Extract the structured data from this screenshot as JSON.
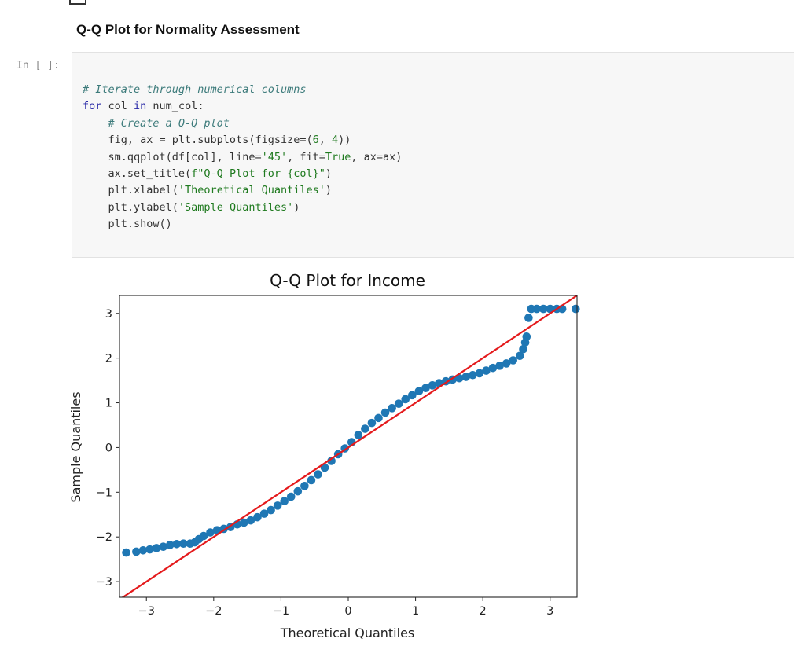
{
  "markdown": {
    "heading": "Q-Q Plot for Normality Assessment"
  },
  "cell": {
    "prompt": "In [ ]:",
    "code": {
      "line1": "# Iterate through numerical columns",
      "line2_kw": "for",
      "line2_a": " col ",
      "line2_in": "in",
      "line2_b": " num_col:",
      "line3": "    # Create a Q-Q plot",
      "line4_a": "    fig, ax = plt.subplots(figsize=(",
      "line4_n1": "6",
      "line4_b": ", ",
      "line4_n2": "4",
      "line4_c": "))",
      "line5_a": "    sm.qqplot(df[col], line=",
      "line5_s": "'45'",
      "line5_b": ", fit=",
      "line5_t": "True",
      "line5_c": ", ax=ax)",
      "line6_a": "    ax.set_title(",
      "line6_s": "f\"Q-Q Plot for {col}\"",
      "line6_b": ")",
      "line7_a": "    plt.xlabel(",
      "line7_s": "'Theoretical Quantiles'",
      "line7_b": ")",
      "line8_a": "    plt.ylabel(",
      "line8_s": "'Sample Quantiles'",
      "line8_b": ")",
      "line9": "    plt.show()"
    }
  },
  "chart_data": {
    "type": "scatter",
    "title": "Q-Q Plot for Income",
    "xlabel": "Theoretical Quantiles",
    "ylabel": "Sample Quantiles",
    "xlim": [
      -3.4,
      3.4
    ],
    "ylim": [
      -3.35,
      3.4
    ],
    "xticks": [
      -3,
      -2,
      -1,
      0,
      1,
      2,
      3
    ],
    "xtick_labels": [
      "−3",
      "−2",
      "−1",
      "0",
      "1",
      "2",
      "3"
    ],
    "yticks": [
      3,
      2,
      1,
      0,
      -1,
      -2,
      -3
    ],
    "ytick_labels": [
      "3",
      "2",
      "1",
      "0",
      "−1",
      "−2",
      "−3"
    ],
    "grid": false,
    "marker_color": "#1f77b4",
    "line_color": "#e41a1c",
    "reference_line": {
      "slope": 1,
      "intercept": 0
    },
    "points": [
      [
        -3.3,
        -2.35
      ],
      [
        -3.15,
        -2.33
      ],
      [
        -3.05,
        -2.3
      ],
      [
        -2.95,
        -2.28
      ],
      [
        -2.85,
        -2.25
      ],
      [
        -2.75,
        -2.22
      ],
      [
        -2.65,
        -2.18
      ],
      [
        -2.55,
        -2.16
      ],
      [
        -2.45,
        -2.15
      ],
      [
        -2.35,
        -2.15
      ],
      [
        -2.28,
        -2.12
      ],
      [
        -2.22,
        -2.05
      ],
      [
        -2.15,
        -1.98
      ],
      [
        -2.05,
        -1.9
      ],
      [
        -1.95,
        -1.85
      ],
      [
        -1.85,
        -1.82
      ],
      [
        -1.75,
        -1.78
      ],
      [
        -1.65,
        -1.72
      ],
      [
        -1.55,
        -1.68
      ],
      [
        -1.45,
        -1.63
      ],
      [
        -1.35,
        -1.56
      ],
      [
        -1.25,
        -1.48
      ],
      [
        -1.15,
        -1.4
      ],
      [
        -1.05,
        -1.3
      ],
      [
        -0.95,
        -1.2
      ],
      [
        -0.85,
        -1.1
      ],
      [
        -0.75,
        -0.98
      ],
      [
        -0.65,
        -0.86
      ],
      [
        -0.55,
        -0.73
      ],
      [
        -0.45,
        -0.6
      ],
      [
        -0.35,
        -0.45
      ],
      [
        -0.25,
        -0.3
      ],
      [
        -0.15,
        -0.15
      ],
      [
        -0.05,
        -0.02
      ],
      [
        0.05,
        0.12
      ],
      [
        0.15,
        0.28
      ],
      [
        0.25,
        0.42
      ],
      [
        0.35,
        0.55
      ],
      [
        0.45,
        0.66
      ],
      [
        0.55,
        0.78
      ],
      [
        0.65,
        0.88
      ],
      [
        0.75,
        0.98
      ],
      [
        0.85,
        1.08
      ],
      [
        0.95,
        1.17
      ],
      [
        1.05,
        1.26
      ],
      [
        1.15,
        1.33
      ],
      [
        1.25,
        1.39
      ],
      [
        1.35,
        1.44
      ],
      [
        1.45,
        1.48
      ],
      [
        1.55,
        1.52
      ],
      [
        1.65,
        1.55
      ],
      [
        1.75,
        1.58
      ],
      [
        1.85,
        1.62
      ],
      [
        1.95,
        1.66
      ],
      [
        2.05,
        1.72
      ],
      [
        2.15,
        1.78
      ],
      [
        2.25,
        1.83
      ],
      [
        2.35,
        1.88
      ],
      [
        2.45,
        1.95
      ],
      [
        2.55,
        2.05
      ],
      [
        2.6,
        2.2
      ],
      [
        2.63,
        2.35
      ],
      [
        2.65,
        2.48
      ],
      [
        2.68,
        2.9
      ],
      [
        2.72,
        3.1
      ],
      [
        2.8,
        3.1
      ],
      [
        2.9,
        3.1
      ],
      [
        3.0,
        3.1
      ],
      [
        3.1,
        3.1
      ],
      [
        3.18,
        3.1
      ],
      [
        3.38,
        3.1
      ]
    ]
  }
}
